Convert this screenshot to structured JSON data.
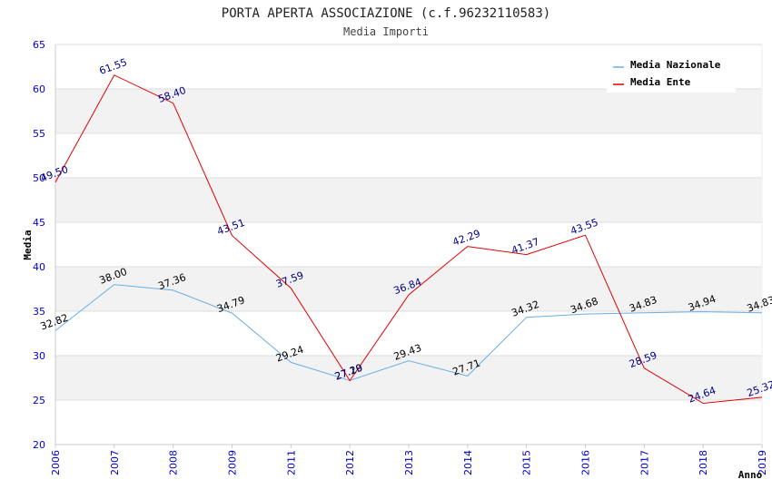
{
  "chart_data": {
    "type": "line",
    "title": "PORTA APERTA ASSOCIAZIONE (c.f.96232110583)",
    "subtitle": "Media Importi",
    "ylabel": "Media",
    "xlabel": "Anno",
    "ylim": [
      20,
      65
    ],
    "yticks": [
      "20",
      "25",
      "30",
      "35",
      "40",
      "45",
      "50",
      "55",
      "60",
      "65"
    ],
    "categories": [
      "2006",
      "2007",
      "2008",
      "2009",
      "2011",
      "2012",
      "2013",
      "2014",
      "2015",
      "2016",
      "2017",
      "2018",
      "2019"
    ],
    "series": [
      {
        "name": "Media Nazionale",
        "color": "#6aaee8",
        "values": [
          32.82,
          38.0,
          37.36,
          34.79,
          29.24,
          27.2,
          29.43,
          27.71,
          34.32,
          34.68,
          34.83,
          34.94,
          34.83
        ],
        "labels": [
          "32.82",
          "38.00",
          "37.36",
          "34.79",
          "29.24",
          "27.20",
          "29.43",
          "27.71",
          "34.32",
          "34.68",
          "34.83",
          "34.94",
          "34.83"
        ]
      },
      {
        "name": "Media Ente",
        "color": "#e00000",
        "values": [
          49.5,
          61.55,
          58.4,
          43.51,
          37.59,
          27.19,
          36.84,
          42.29,
          41.37,
          43.55,
          28.59,
          24.64,
          25.32
        ],
        "labels": [
          "49.50",
          "61.55",
          "58.40",
          "43.51",
          "37.59",
          "27.19",
          "36.84",
          "42.29",
          "41.37",
          "43.55",
          "28.59",
          "24.64",
          "25.32"
        ]
      }
    ],
    "legend_position": "top-right",
    "grid": true
  }
}
